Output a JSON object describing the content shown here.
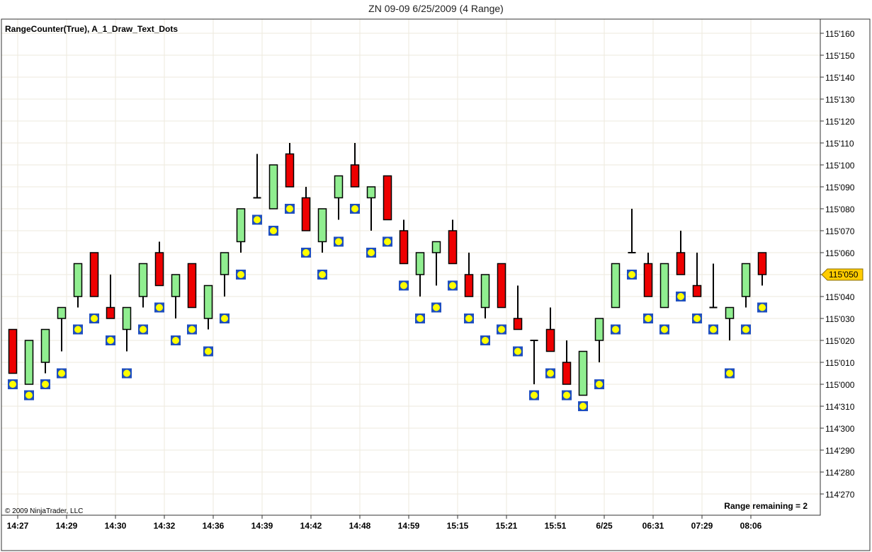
{
  "window": {
    "title": "ZN 09-09  6/25/2009 (4 Range)"
  },
  "panel": {
    "indicator_label": "RangeCounter(True), A_1_Draw_Text_Dots",
    "copyright": "© 2009 NinjaTrader, LLC",
    "range_remaining": "Range remaining = 2",
    "last_price_label": "115'050"
  },
  "colors": {
    "up_bar": "#90ee90",
    "down_bar": "#ee0000",
    "dot_fill": "#ffff00",
    "dot_border": "#1f4fbf",
    "last_price_tag": "#ffcc00",
    "grid": "#eeeadd"
  },
  "chart_data": {
    "type": "candlestick",
    "y_unit": "32nds",
    "y_ticks": [
      {
        "value": 0,
        "label": "114'270"
      },
      {
        "value": 1,
        "label": "114'280"
      },
      {
        "value": 2,
        "label": "114'290"
      },
      {
        "value": 3,
        "label": "114'300"
      },
      {
        "value": 4,
        "label": "114'310"
      },
      {
        "value": 5,
        "label": "115'000"
      },
      {
        "value": 6,
        "label": "115'010"
      },
      {
        "value": 7,
        "label": "115'020"
      },
      {
        "value": 8,
        "label": "115'030"
      },
      {
        "value": 9,
        "label": "115'040"
      },
      {
        "value": 10,
        "label": "115'050"
      },
      {
        "value": 11,
        "label": "115'060"
      },
      {
        "value": 12,
        "label": "115'070"
      },
      {
        "value": 13,
        "label": "115'080"
      },
      {
        "value": 14,
        "label": "115'090"
      },
      {
        "value": 15,
        "label": "115'100"
      },
      {
        "value": 16,
        "label": "115'110"
      },
      {
        "value": 17,
        "label": "115'120"
      },
      {
        "value": 18,
        "label": "115'130"
      },
      {
        "value": 19,
        "label": "115'140"
      },
      {
        "value": 20,
        "label": "115'150"
      },
      {
        "value": 21,
        "label": "115'160"
      }
    ],
    "x_labels": [
      {
        "bar": 0,
        "label": "14:27"
      },
      {
        "bar": 3,
        "label": "14:29"
      },
      {
        "bar": 6,
        "label": "14:30"
      },
      {
        "bar": 9,
        "label": "14:32"
      },
      {
        "bar": 12,
        "label": "14:36"
      },
      {
        "bar": 15,
        "label": "14:39"
      },
      {
        "bar": 18,
        "label": "14:42"
      },
      {
        "bar": 21,
        "label": "14:48"
      },
      {
        "bar": 24,
        "label": "14:59"
      },
      {
        "bar": 27,
        "label": "15:15"
      },
      {
        "bar": 30,
        "label": "15:21"
      },
      {
        "bar": 33,
        "label": "15:51"
      },
      {
        "bar": 36,
        "label": "6/25"
      },
      {
        "bar": 39,
        "label": "06:31"
      },
      {
        "bar": 42,
        "label": "07:29"
      },
      {
        "bar": 45,
        "label": "08:06"
      }
    ],
    "bars": [
      {
        "o": 7.5,
        "h": 7.5,
        "l": 5.5,
        "c": 5.5,
        "dot": 5.0
      },
      {
        "o": 5.0,
        "h": 7.0,
        "l": 5.0,
        "c": 7.0,
        "dot": 4.5
      },
      {
        "o": 6.0,
        "h": 7.5,
        "l": 5.5,
        "c": 7.5,
        "dot": 5.0
      },
      {
        "o": 8.0,
        "h": 8.5,
        "l": 6.5,
        "c": 8.5,
        "dot": 5.5
      },
      {
        "o": 9.0,
        "h": 10.5,
        "l": 8.5,
        "c": 10.5,
        "dot": 7.5
      },
      {
        "o": 11.0,
        "h": 11.0,
        "l": 9.0,
        "c": 9.0,
        "dot": 8.0
      },
      {
        "o": 8.5,
        "h": 10.0,
        "l": 8.0,
        "c": 8.0,
        "dot": 7.0
      },
      {
        "o": 7.5,
        "h": 8.5,
        "l": 6.5,
        "c": 8.5,
        "dot": 5.5
      },
      {
        "o": 9.0,
        "h": 10.5,
        "l": 8.5,
        "c": 10.5,
        "dot": 7.5
      },
      {
        "o": 11.0,
        "h": 11.5,
        "l": 9.5,
        "c": 9.5,
        "dot": 8.5
      },
      {
        "o": 9.0,
        "h": 10.0,
        "l": 8.0,
        "c": 10.0,
        "dot": 7.0
      },
      {
        "o": 10.5,
        "h": 10.5,
        "l": 8.5,
        "c": 8.5,
        "dot": 7.5
      },
      {
        "o": 8.0,
        "h": 9.5,
        "l": 7.5,
        "c": 9.5,
        "dot": 6.5
      },
      {
        "o": 10.0,
        "h": 11.0,
        "l": 9.0,
        "c": 11.0,
        "dot": 8.0
      },
      {
        "o": 11.5,
        "h": 13.0,
        "l": 11.0,
        "c": 13.0,
        "dot": 10.0
      },
      {
        "o": 13.5,
        "h": 15.5,
        "l": 13.5,
        "c": 13.5,
        "dot": 12.5
      },
      {
        "o": 13.0,
        "h": 15.0,
        "l": 13.0,
        "c": 15.0,
        "dot": 12.0
      },
      {
        "o": 15.5,
        "h": 16.0,
        "l": 14.0,
        "c": 14.0,
        "dot": 13.0
      },
      {
        "o": 13.5,
        "h": 14.0,
        "l": 12.0,
        "c": 12.0,
        "dot": 11.0
      },
      {
        "o": 11.5,
        "h": 13.0,
        "l": 11.0,
        "c": 13.0,
        "dot": 10.0
      },
      {
        "o": 13.5,
        "h": 14.5,
        "l": 12.5,
        "c": 14.5,
        "dot": 11.5
      },
      {
        "o": 15.0,
        "h": 16.0,
        "l": 14.0,
        "c": 14.0,
        "dot": 13.0
      },
      {
        "o": 13.5,
        "h": 14.0,
        "l": 12.0,
        "c": 14.0,
        "dot": 11.0
      },
      {
        "o": 14.5,
        "h": 14.5,
        "l": 12.5,
        "c": 12.5,
        "dot": 11.5
      },
      {
        "o": 12.0,
        "h": 12.5,
        "l": 10.5,
        "c": 10.5,
        "dot": 9.5
      },
      {
        "o": 10.0,
        "h": 11.0,
        "l": 9.0,
        "c": 11.0,
        "dot": 8.0
      },
      {
        "o": 11.0,
        "h": 11.5,
        "l": 9.5,
        "c": 11.5,
        "dot": 8.5
      },
      {
        "o": 12.0,
        "h": 12.5,
        "l": 10.5,
        "c": 10.5,
        "dot": 9.5
      },
      {
        "o": 10.0,
        "h": 11.0,
        "l": 9.0,
        "c": 9.0,
        "dot": 8.0
      },
      {
        "o": 8.5,
        "h": 10.0,
        "l": 8.0,
        "c": 10.0,
        "dot": 7.0
      },
      {
        "o": 10.5,
        "h": 10.5,
        "l": 8.5,
        "c": 8.5,
        "dot": 7.5
      },
      {
        "o": 8.0,
        "h": 9.5,
        "l": 7.5,
        "c": 7.5,
        "dot": 6.5
      },
      {
        "o": 7.0,
        "h": 7.0,
        "l": 5.0,
        "c": 7.0,
        "dot": 4.5
      },
      {
        "o": 7.5,
        "h": 8.5,
        "l": 6.5,
        "c": 6.5,
        "dot": 5.5
      },
      {
        "o": 6.0,
        "h": 7.0,
        "l": 5.0,
        "c": 5.0,
        "dot": 4.5
      },
      {
        "o": 4.5,
        "h": 6.5,
        "l": 4.5,
        "c": 6.5,
        "dot": 4.0
      },
      {
        "o": 7.0,
        "h": 8.0,
        "l": 6.0,
        "c": 8.0,
        "dot": 5.0
      },
      {
        "o": 8.5,
        "h": 10.5,
        "l": 8.5,
        "c": 10.5,
        "dot": 7.5
      },
      {
        "o": 11.0,
        "h": 13.0,
        "l": 11.0,
        "c": 11.0,
        "dot": 10.0
      },
      {
        "o": 10.5,
        "h": 11.0,
        "l": 9.0,
        "c": 9.0,
        "dot": 8.0
      },
      {
        "o": 8.5,
        "h": 10.5,
        "l": 8.5,
        "c": 10.5,
        "dot": 7.5
      },
      {
        "o": 11.0,
        "h": 12.0,
        "l": 10.0,
        "c": 10.0,
        "dot": 9.0
      },
      {
        "o": 9.5,
        "h": 11.0,
        "l": 9.0,
        "c": 9.0,
        "dot": 8.0
      },
      {
        "o": 8.5,
        "h": 10.5,
        "l": 8.5,
        "c": 8.5,
        "dot": 7.5
      },
      {
        "o": 8.0,
        "h": 8.5,
        "l": 7.0,
        "c": 8.5,
        "dot": 5.5
      },
      {
        "o": 9.0,
        "h": 10.5,
        "l": 8.5,
        "c": 10.5,
        "dot": 7.5
      },
      {
        "o": 11.0,
        "h": 11.0,
        "l": 9.5,
        "c": 10.0,
        "dot": 8.5
      }
    ],
    "last_price": 10.0,
    "grid": true
  }
}
